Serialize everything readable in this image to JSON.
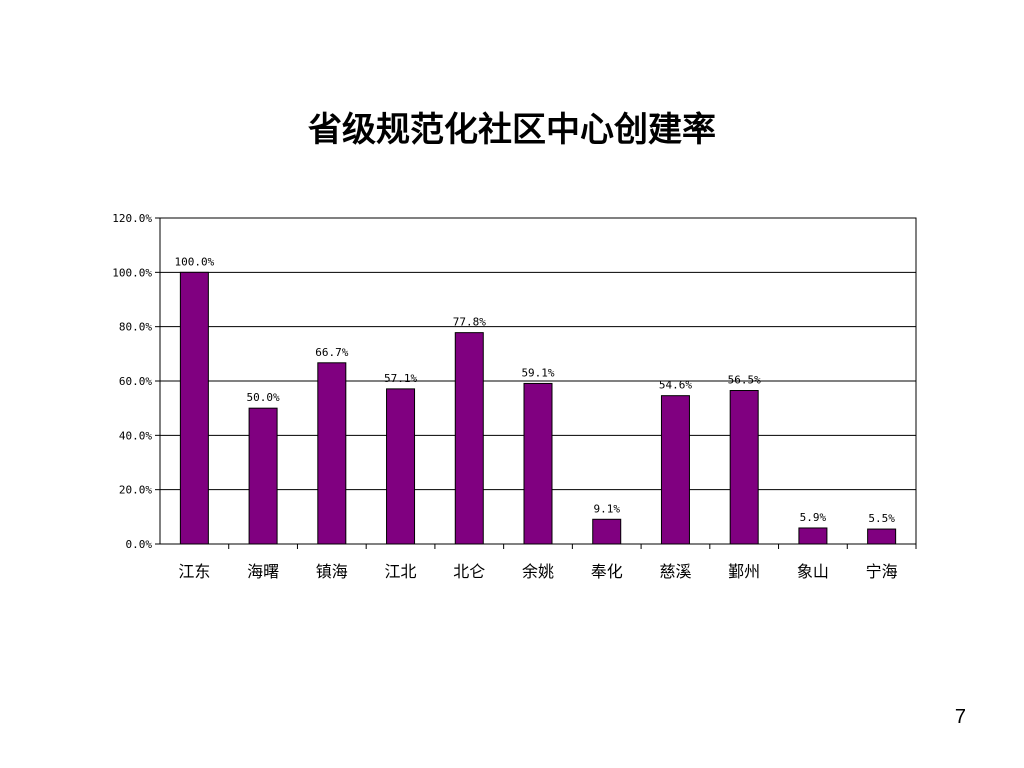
{
  "slide": {
    "title": "省级规范化社区中心创建率",
    "page_number": "7"
  },
  "chart_data": {
    "type": "bar",
    "title": "省级规范化社区中心创建率",
    "xlabel": "",
    "ylabel": "",
    "categories": [
      "江东",
      "海曙",
      "镇海",
      "江北",
      "北仑",
      "余姚",
      "奉化",
      "慈溪",
      "鄞州",
      "象山",
      "宁海"
    ],
    "values": [
      100.0,
      50.0,
      66.7,
      57.1,
      77.8,
      59.1,
      9.1,
      54.6,
      56.5,
      5.9,
      5.5
    ],
    "data_labels": [
      "100.0%",
      "50.0%",
      "66.7%",
      "57.1%",
      "77.8%",
      "59.1%",
      "9.1%",
      "54.6%",
      "56.5%",
      "5.9%",
      "5.5%"
    ],
    "ylim": [
      0,
      120
    ],
    "yticks": [
      0,
      20,
      40,
      60,
      80,
      100,
      120
    ],
    "ytick_labels": [
      "0.0%",
      "20.0%",
      "40.0%",
      "60.0%",
      "80.0%",
      "100.0%",
      "120.0%"
    ],
    "grid": true,
    "legend": "none",
    "bar_color": "#800080"
  }
}
